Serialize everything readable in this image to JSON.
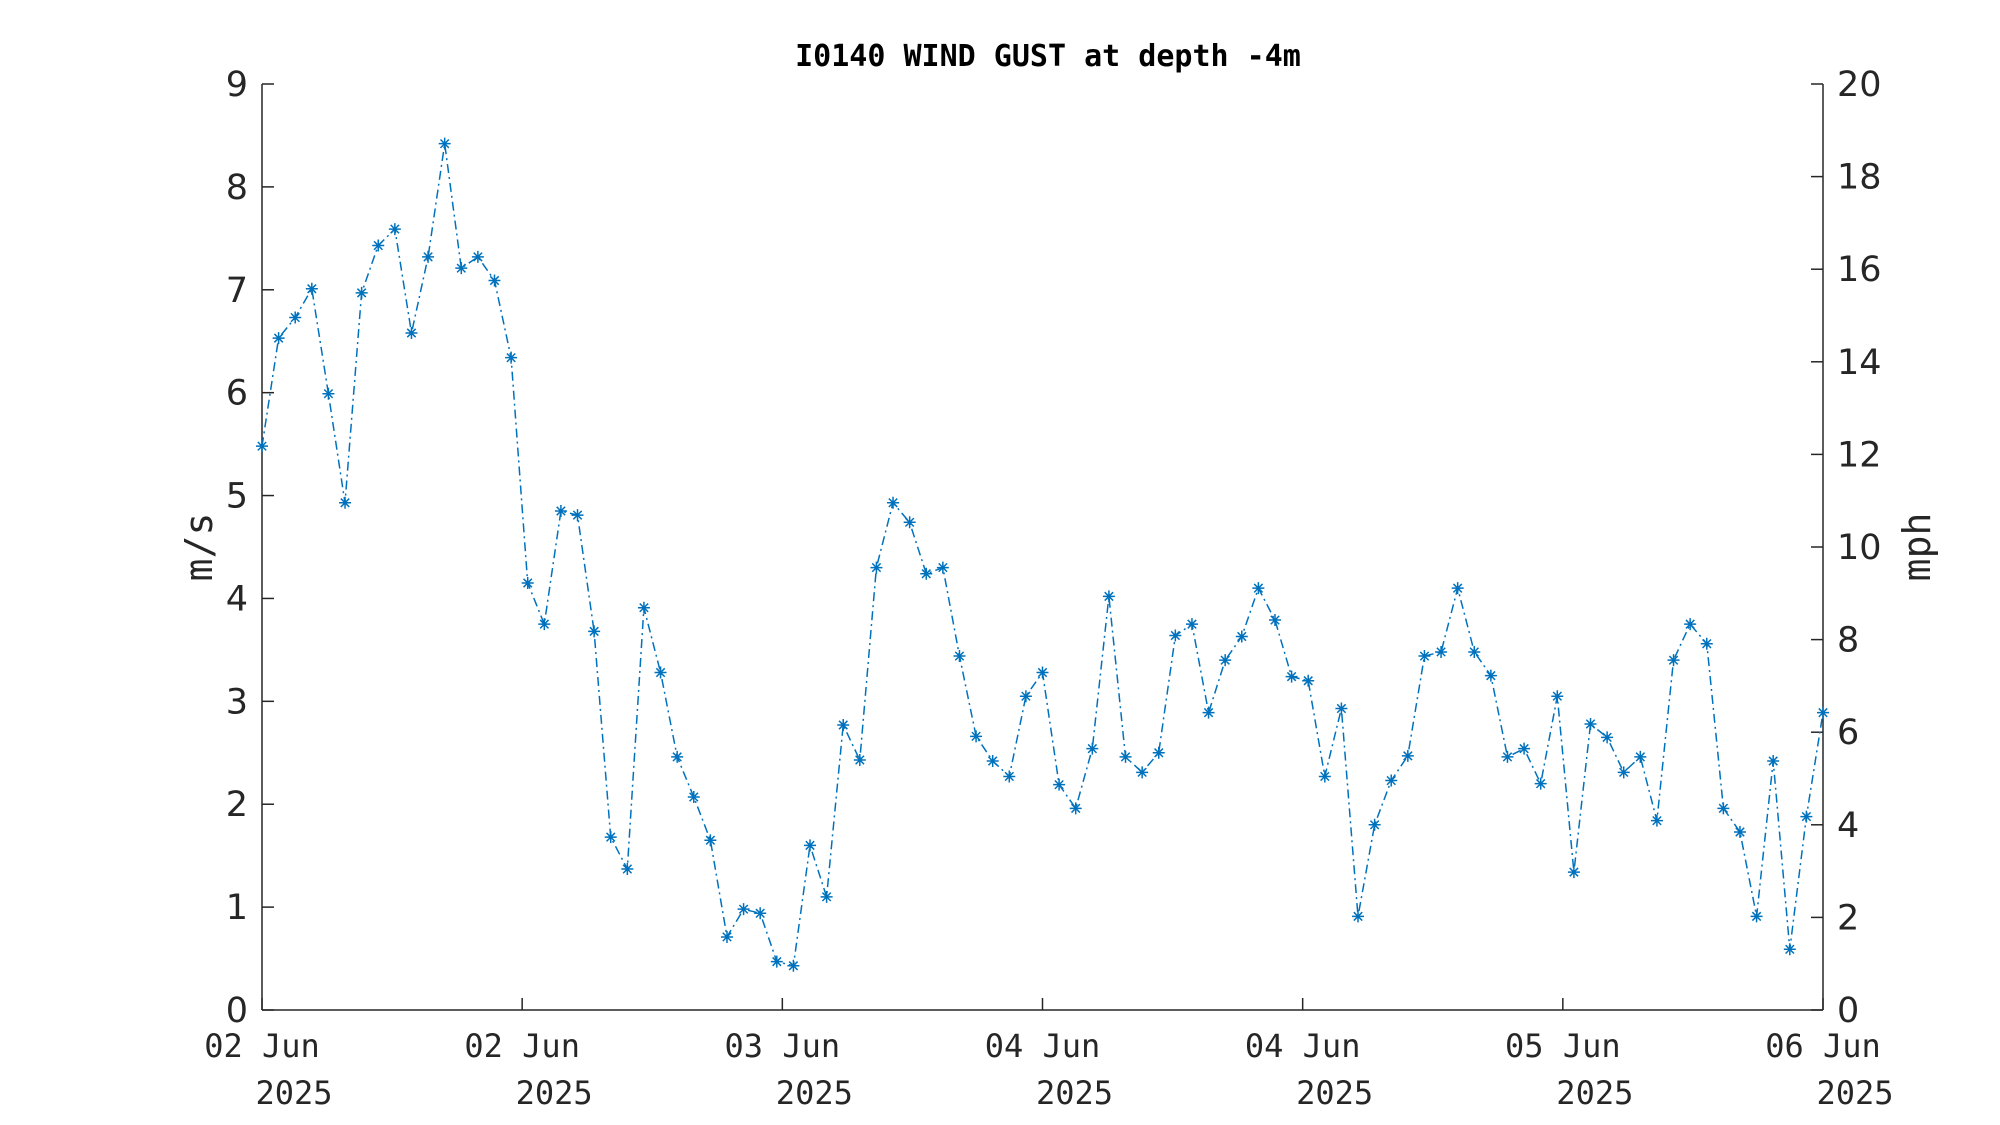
{
  "chart_data": {
    "type": "line",
    "title": "I0140 WIND GUST at depth -4m",
    "ylabel": "m/s",
    "ylabel_right": "mph",
    "ylim": [
      0,
      9
    ],
    "ylim_right": [
      0,
      20
    ],
    "yticks": [
      "0",
      "1",
      "2",
      "3",
      "4",
      "5",
      "6",
      "7",
      "8",
      "9"
    ],
    "yticks_right": [
      "0",
      "2",
      "4",
      "6",
      "8",
      "10",
      "12",
      "14",
      "16",
      "18",
      "20"
    ],
    "xticks": [
      {
        "line1": "02 Jun",
        "line2": "2025"
      },
      {
        "line1": "02 Jun",
        "line2": "2025"
      },
      {
        "line1": "03 Jun",
        "line2": "2025"
      },
      {
        "line1": "04 Jun",
        "line2": "2025"
      },
      {
        "line1": "04 Jun",
        "line2": "2025"
      },
      {
        "line1": "05 Jun",
        "line2": "2025"
      },
      {
        "line1": "06 Jun",
        "line2": "2025"
      }
    ],
    "grid": false,
    "color": "#0072bd",
    "line_style": "dash-dot",
    "marker": "asterisk",
    "series": [
      {
        "values": [
          5.48,
          6.53,
          6.73,
          7.01,
          5.99,
          4.93,
          6.97,
          7.43,
          7.59,
          6.58,
          7.32,
          8.42,
          7.21,
          7.32,
          7.09,
          6.34,
          4.15,
          3.75,
          4.85,
          4.81,
          3.68,
          1.68,
          1.37,
          3.91,
          3.28,
          2.46,
          2.07,
          1.65,
          0.71,
          0.98,
          0.94,
          0.47,
          0.43,
          1.6,
          1.1,
          2.77,
          2.43,
          4.3,
          4.93,
          4.74,
          4.24,
          4.3,
          3.44,
          2.66,
          2.42,
          2.27,
          3.05,
          3.28,
          2.19,
          1.96,
          2.54,
          4.02,
          2.46,
          2.31,
          2.5,
          3.64,
          3.75,
          2.89,
          3.4,
          3.63,
          4.1,
          3.79,
          3.24,
          3.2,
          2.27,
          2.93,
          0.91,
          1.8,
          2.23,
          2.47,
          3.44,
          3.48,
          4.1,
          3.48,
          3.25,
          2.46,
          2.54,
          2.2,
          3.05,
          1.34,
          2.78,
          2.65,
          2.31,
          2.46,
          1.84,
          3.4,
          3.75,
          3.56,
          1.96,
          1.73,
          0.91,
          2.42,
          0.59,
          1.88,
          2.89
        ]
      }
    ]
  }
}
